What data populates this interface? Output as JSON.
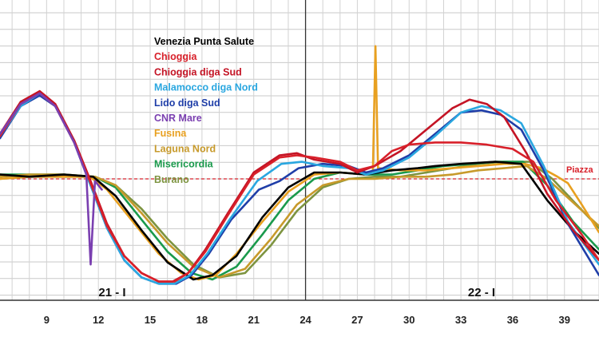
{
  "chart_data": {
    "type": "line",
    "x_ticks": [
      9,
      12,
      15,
      18,
      21,
      24,
      27,
      30,
      33,
      36,
      39
    ],
    "xlim": [
      6.3,
      41
    ],
    "ylim": [
      0,
      100
    ],
    "grid": true,
    "day_labels": [
      {
        "label": "21 - I",
        "x": 12.8
      },
      {
        "label": "22 - I",
        "x": 34.2
      }
    ],
    "day_divider_x": 24,
    "reference_line": {
      "label": "Piazza",
      "y": 50,
      "color": "#d8202a"
    },
    "legend_position": "top-center",
    "series": [
      {
        "name": "Venezia Punta Salute",
        "color": "#000000",
        "x": [
          6.3,
          8,
          10,
          11.7,
          13,
          14.5,
          16,
          17.5,
          18.6,
          20,
          21.5,
          23,
          24.5,
          26,
          27.5,
          29,
          30.5,
          31.5,
          33,
          35,
          36.5,
          38,
          39.5,
          41
        ],
        "y": [
          52,
          51,
          52,
          51,
          42,
          26,
          11,
          3,
          5,
          14,
          32,
          46,
          53,
          53,
          52,
          54,
          55,
          56,
          57,
          58,
          57,
          40,
          26,
          15
        ]
      },
      {
        "name": "Chioggia",
        "color": "#d8202a",
        "x": [
          6.3,
          7.5,
          8.6,
          9.5,
          10.6,
          11.5,
          12.5,
          13.5,
          14.5,
          15.5,
          16.4,
          17.2,
          18.2,
          19.5,
          21,
          22.5,
          23.5,
          24.5,
          26,
          27,
          28,
          29,
          30,
          31.5,
          33,
          34.5,
          36,
          37.2,
          38.5,
          40,
          41
        ],
        "y": [
          70,
          85,
          90,
          84,
          67,
          49,
          28,
          14,
          6,
          2,
          2,
          6,
          16,
          33,
          52,
          60,
          61,
          60,
          58,
          54,
          56,
          63,
          66,
          67,
          67,
          66,
          64,
          58,
          40,
          24,
          12
        ]
      },
      {
        "name": "Chioggia diga Sud",
        "color": "#c41425",
        "x": [
          6.3,
          7.5,
          8.6,
          9.5,
          10.6,
          11.5,
          12.5,
          13.5,
          14.5,
          15.5,
          16.3,
          17.2,
          18.2,
          19.5,
          21,
          22.5,
          23.5,
          24.5,
          26,
          27,
          28,
          29.5,
          31,
          32.5,
          33.5,
          34.5,
          35.5,
          36.8,
          38,
          39.5,
          41
        ],
        "y": [
          71,
          86,
          91,
          85,
          68,
          50,
          29,
          14,
          6,
          2,
          2,
          6,
          17,
          34,
          53,
          61,
          62,
          59,
          57,
          53,
          56,
          63,
          73,
          83,
          87,
          85,
          79,
          62,
          43,
          26,
          12
        ]
      },
      {
        "name": "Malamocco diga Nord",
        "color": "#2aa7e0",
        "x": [
          6.3,
          7.5,
          8.6,
          9.5,
          10.6,
          11.5,
          12.5,
          13.5,
          14.5,
          15.5,
          16.4,
          17.3,
          18.3,
          19.6,
          21.2,
          22.6,
          23.8,
          25,
          26.5,
          27.5,
          28.5,
          30,
          31.5,
          33,
          34.2,
          35.3,
          36.5,
          37.8,
          39.2,
          41
        ],
        "y": [
          70,
          84,
          90,
          84,
          67,
          48,
          27,
          12,
          4,
          1,
          1,
          5,
          15,
          31,
          49,
          57,
          58,
          56,
          55,
          52,
          54,
          60,
          70,
          81,
          84,
          82,
          76,
          56,
          30,
          10
        ]
      },
      {
        "name": "Lido diga Sud",
        "color": "#1f3ea8",
        "x": [
          6.3,
          7.5,
          8.6,
          9.5,
          10.6,
          11.5,
          12.5,
          13.5,
          14.5,
          15.5,
          16.5,
          17.4,
          18.4,
          19.7,
          21.3,
          22.5,
          23.6,
          25,
          26.5,
          27.5,
          28.5,
          30,
          31.5,
          33,
          34.2,
          35.3,
          36.5,
          37.8,
          39.2,
          41
        ],
        "y": [
          69,
          84,
          89,
          84,
          67,
          48,
          27,
          12,
          4,
          1,
          1,
          5,
          15,
          31,
          45,
          49,
          55,
          57,
          56,
          53,
          55,
          61,
          71,
          81,
          82,
          80,
          73,
          54,
          29,
          5
        ]
      },
      {
        "name": "CNR Mare",
        "color": "#7a3fb0",
        "x": [
          6.3,
          7.5,
          8.6,
          9.5,
          10.6,
          11.3,
          11.55,
          11.8,
          12.2
        ],
        "y": [
          71,
          85,
          90,
          84,
          67,
          52,
          10,
          49,
          45
        ]
      },
      {
        "name": "Fusina",
        "color": "#e8a020",
        "x": [
          6.3,
          8,
          10,
          11.5,
          12.5,
          14,
          15.5,
          16.8,
          17.8,
          18.8,
          20,
          21.5,
          23,
          24.5,
          26,
          27.5,
          27.9,
          28.05,
          28.2,
          29.5,
          31,
          32.5,
          34,
          35.5,
          36.7,
          37.7,
          38.6,
          39.2,
          40,
          41
        ],
        "y": [
          50,
          51,
          51,
          51,
          45,
          30,
          15,
          6,
          3,
          5,
          15,
          30,
          44,
          52,
          53,
          52,
          54,
          112,
          55,
          54,
          54,
          55,
          56,
          57,
          57,
          55,
          51,
          48,
          38,
          25
        ]
      },
      {
        "name": "Laguna Nord",
        "color": "#c79a2b",
        "x": [
          6.3,
          8,
          10,
          11.8,
          13,
          14.5,
          16,
          17.5,
          19,
          20.5,
          22,
          23.5,
          25,
          26.5,
          28,
          29.5,
          31,
          32.5,
          34,
          35.5,
          36.8,
          38,
          39.5,
          41
        ],
        "y": [
          51,
          52,
          52,
          51,
          47,
          34,
          20,
          9,
          4,
          8,
          22,
          38,
          47,
          50,
          50,
          51,
          51,
          52,
          54,
          55,
          56,
          50,
          39,
          28
        ]
      },
      {
        "name": "Misericordia",
        "color": "#1a9a4c",
        "x": [
          6.3,
          8,
          10,
          11.8,
          13,
          14.5,
          16,
          17.4,
          18.6,
          20,
          21.5,
          23,
          24.5,
          26,
          27.5,
          29,
          30.5,
          32,
          33.5,
          35,
          36.6,
          38,
          39.5,
          41
        ],
        "y": [
          52,
          52,
          52,
          51,
          46,
          31,
          16,
          6,
          3,
          9,
          24,
          40,
          50,
          53,
          52,
          52,
          54,
          56,
          57,
          58,
          58,
          47,
          30,
          17
        ]
      },
      {
        "name": "Burano",
        "color": "#7d9440",
        "x": [
          6.3,
          8,
          10,
          11.8,
          13,
          14.5,
          16,
          17.5,
          19,
          20.5,
          22,
          23.5,
          25,
          26.5,
          28,
          29.5,
          31,
          32.5,
          34,
          35.5,
          37,
          38.3,
          39.7,
          41
        ],
        "y": [
          50,
          51,
          51,
          51,
          47,
          36,
          22,
          10,
          4,
          6,
          19,
          35,
          46,
          50,
          51,
          51,
          53,
          55,
          57,
          58,
          58,
          50,
          38,
          27
        ]
      }
    ]
  }
}
